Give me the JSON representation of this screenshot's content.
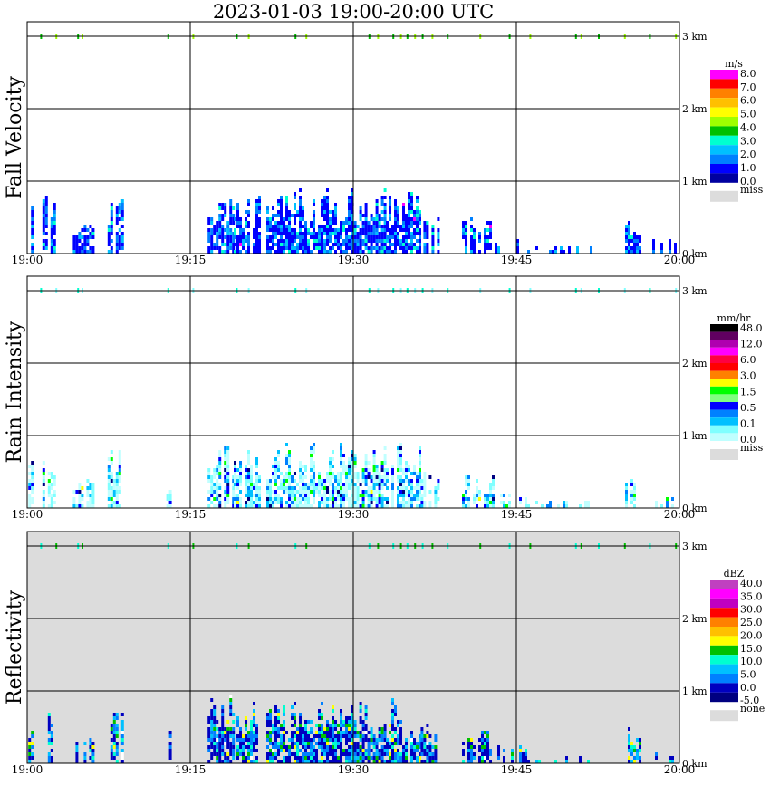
{
  "title": "2023-01-03   19:00-20:00 UTC",
  "time_ticks": [
    "19:00",
    "19:15",
    "19:30",
    "19:45",
    "20:00"
  ],
  "height_ticks": [
    "0 km",
    "1 km",
    "2 km",
    "3 km"
  ],
  "chart_data": [
    {
      "type": "heatmap",
      "title": "Fall Velocity",
      "ylabel": "Fall Velocity",
      "xlim": [
        "19:00",
        "20:00"
      ],
      "ylim_km": [
        0,
        3.2
      ],
      "grid": true,
      "colorbar": {
        "units": "m/s",
        "labels": [
          "8.0",
          "7.0",
          "6.0",
          "5.0",
          "4.0",
          "3.0",
          "2.0",
          "1.0",
          "0.0"
        ],
        "colors": [
          "#ff00ff",
          "#ff0000",
          "#ff8000",
          "#ffc000",
          "#ffff00",
          "#a0ff00",
          "#00c000",
          "#00ffd0",
          "#00c0ff",
          "#0080ff",
          "#0000ff",
          "#0000a0"
        ],
        "missing_label": "miss",
        "missing_color": "#dcdcdc"
      },
      "background": "#ffffff",
      "precip_colors": [
        "#0000ff",
        "#0080ff",
        "#00c0ff",
        "#00ffd0",
        "#ff00ff"
      ],
      "surface_colors": [
        "#00c000",
        "#a0ff00"
      ]
    },
    {
      "type": "heatmap",
      "title": "Rain Intensity",
      "ylabel": "Rain Intensity",
      "xlim": [
        "19:00",
        "20:00"
      ],
      "ylim_km": [
        0,
        3.2
      ],
      "grid": true,
      "colorbar": {
        "units": "mm/hr",
        "labels": [
          "48.0",
          "12.0",
          "6.0",
          "3.0",
          "1.5",
          "0.5",
          "0.1",
          "0.0"
        ],
        "colors": [
          "#000000",
          "#600060",
          "#b000b0",
          "#ff00ff",
          "#ff0040",
          "#ff0000",
          "#ff8000",
          "#ffff00",
          "#00ff00",
          "#80ff80",
          "#0000ff",
          "#0080ff",
          "#00c0ff",
          "#80ffff",
          "#c0ffff"
        ],
        "missing_label": "miss",
        "missing_color": "#dcdcdc"
      },
      "background": "#ffffff",
      "precip_colors": [
        "#c0ffff",
        "#80ffff",
        "#00c0ff",
        "#0080ff",
        "#0000ff",
        "#000080",
        "#00ff00",
        "#ffff00"
      ],
      "surface_colors": [
        "#00ffd0",
        "#80ffff"
      ]
    },
    {
      "type": "heatmap",
      "title": "Reflectivity",
      "ylabel": "Reflectivity",
      "xlim": [
        "19:00",
        "20:00"
      ],
      "ylim_km": [
        0,
        3.2
      ],
      "grid": true,
      "colorbar": {
        "units": "dBZ",
        "labels": [
          "40.0",
          "35.0",
          "30.0",
          "25.0",
          "20.0",
          "15.0",
          "10.0",
          "5.0",
          "0.0",
          "-5.0"
        ],
        "colors": [
          "#c040c0",
          "#ff00ff",
          "#c000c0",
          "#ff0000",
          "#ff8000",
          "#ffc000",
          "#ffff00",
          "#00c000",
          "#00ffd0",
          "#00c0ff",
          "#0080ff",
          "#0000c0",
          "#000080"
        ],
        "missing_label": "none",
        "missing_color": "#dcdcdc"
      },
      "background": "#dcdcdc",
      "precip_colors": [
        "#0000c0",
        "#0080ff",
        "#00c0ff",
        "#00ffd0",
        "#00c000",
        "#ffff00",
        "#ffffff"
      ],
      "surface_colors": [
        "#00ffd0",
        "#00c000"
      ]
    }
  ]
}
